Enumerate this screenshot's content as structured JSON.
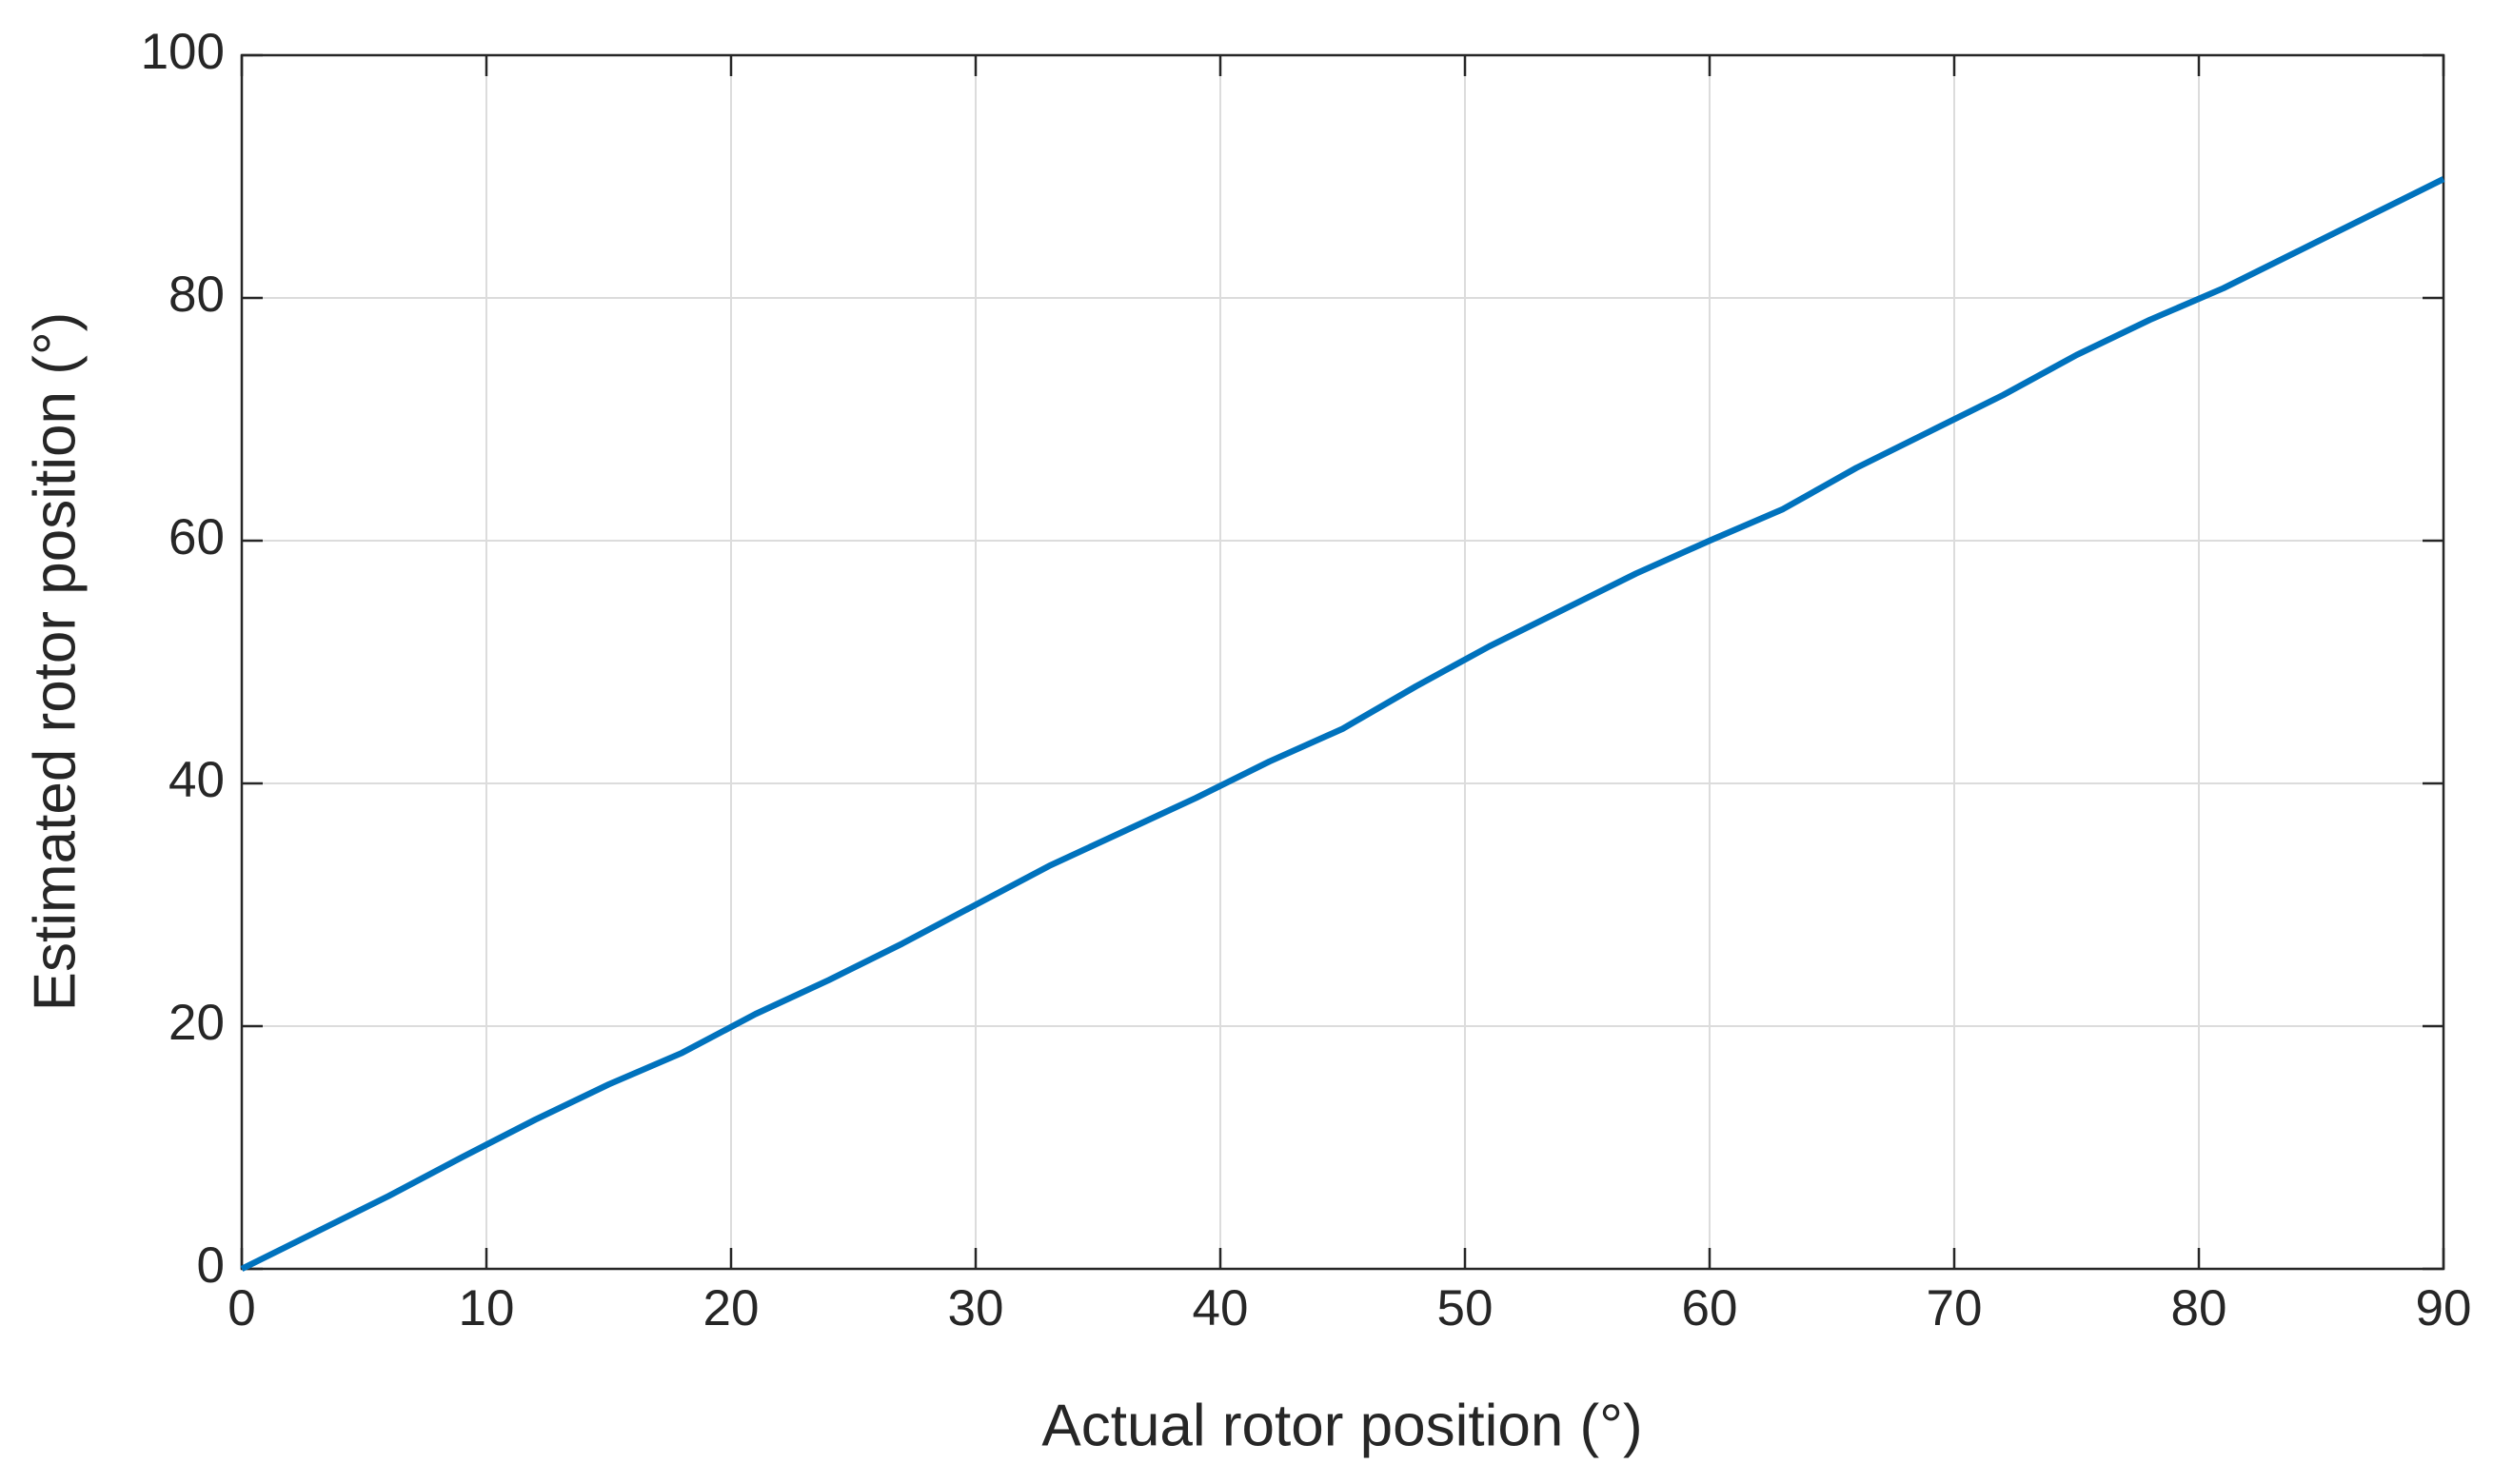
{
  "chart_data": {
    "type": "line",
    "xlabel": "Actual rotor position (°)",
    "ylabel": "Estimated rotor position (°)",
    "x": [
      0,
      3,
      6,
      9,
      12,
      15,
      18,
      21,
      24,
      27,
      30,
      33,
      36,
      39,
      42,
      45,
      48,
      51,
      54,
      57,
      60,
      63,
      66,
      69,
      72,
      75,
      78,
      81,
      84,
      87,
      90
    ],
    "series": [
      {
        "name": "Estimated",
        "color": "#0072bd",
        "values": [
          0,
          3,
          6,
          9.2,
          12.3,
          15.2,
          17.8,
          21,
          23.8,
          26.8,
          30,
          33.2,
          36,
          38.8,
          41.8,
          44.5,
          48,
          51.3,
          54.3,
          57.3,
          60,
          62.6,
          66,
          69,
          72,
          75.3,
          78.2,
          80.8,
          83.8,
          86.8,
          89.8
        ]
      }
    ],
    "xlim": [
      0,
      90
    ],
    "ylim": [
      0,
      100
    ],
    "xticks": [
      0,
      10,
      20,
      30,
      40,
      50,
      60,
      70,
      80,
      90
    ],
    "yticks": [
      0,
      20,
      40,
      60,
      80,
      100
    ],
    "grid": true
  }
}
